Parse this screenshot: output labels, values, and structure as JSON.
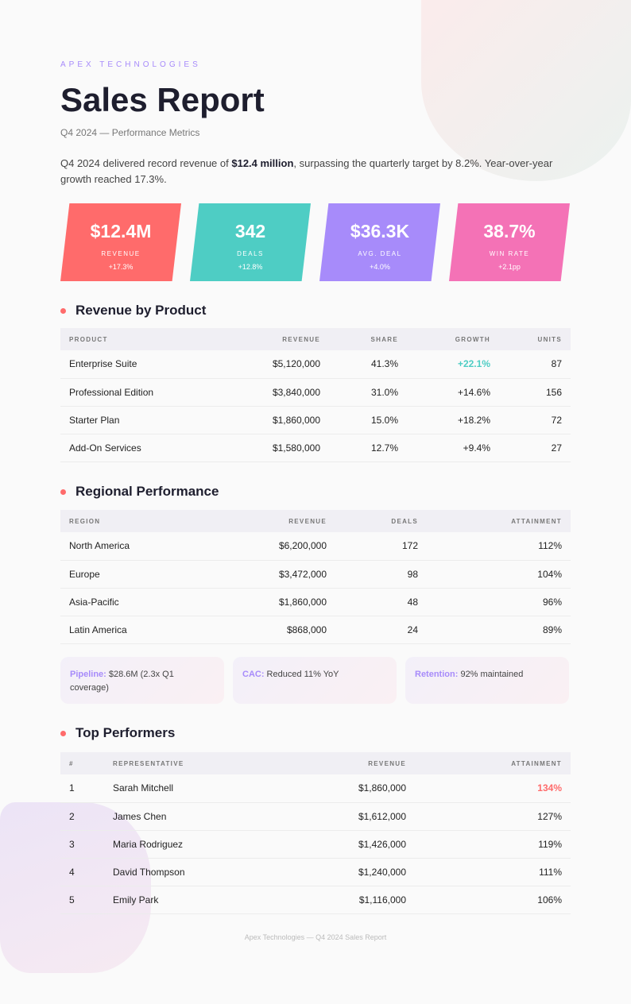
{
  "brand": "APEX TECHNOLOGIES",
  "title": "Sales Report",
  "subtitle": "Q4 2024 — Performance Metrics",
  "intro": {
    "pre": "Q4 2024 delivered record revenue of ",
    "bold": "$12.4 million",
    "post": ", surpassing the quarterly target by 8.2%. Year-over-year growth reached 17.3%."
  },
  "kpis": [
    {
      "value": "$12.4M",
      "label": "REVENUE",
      "delta": "+17.3%",
      "color": "#ff6b6b"
    },
    {
      "value": "342",
      "label": "DEALS",
      "delta": "+12.8%",
      "color": "#4ecdc4"
    },
    {
      "value": "$36.3K",
      "label": "AVG. DEAL",
      "delta": "+4.0%",
      "color": "#a78bfa"
    },
    {
      "value": "38.7%",
      "label": "WIN RATE",
      "delta": "+2.1pp",
      "color": "#f472b6"
    }
  ],
  "products": {
    "heading": "Revenue by Product",
    "headers": [
      "PRODUCT",
      "REVENUE",
      "SHARE",
      "GROWTH",
      "UNITS"
    ],
    "rows": [
      [
        "Enterprise Suite",
        "$5,120,000",
        "41.3%",
        "+22.1%",
        "87"
      ],
      [
        "Professional Edition",
        "$3,840,000",
        "31.0%",
        "+14.6%",
        "156"
      ],
      [
        "Starter Plan",
        "$1,860,000",
        "15.0%",
        "+18.2%",
        "72"
      ],
      [
        "Add-On Services",
        "$1,580,000",
        "12.7%",
        "+9.4%",
        "27"
      ]
    ]
  },
  "regions": {
    "heading": "Regional Performance",
    "headers": [
      "REGION",
      "REVENUE",
      "DEALS",
      "ATTAINMENT"
    ],
    "rows": [
      [
        "North America",
        "$6,200,000",
        "172",
        "112%"
      ],
      [
        "Europe",
        "$3,472,000",
        "98",
        "104%"
      ],
      [
        "Asia-Pacific",
        "$1,860,000",
        "48",
        "96%"
      ],
      [
        "Latin America",
        "$868,000",
        "24",
        "89%"
      ]
    ]
  },
  "notes": [
    {
      "label": "Pipeline:",
      "text": " $28.6M (2.3x Q1 coverage)"
    },
    {
      "label": "CAC:",
      "text": " Reduced 11% YoY"
    },
    {
      "label": "Retention:",
      "text": " 92% maintained"
    }
  ],
  "performers": {
    "heading": "Top Performers",
    "headers": [
      "#",
      "REPRESENTATIVE",
      "REVENUE",
      "ATTAINMENT"
    ],
    "rows": [
      [
        "1",
        "Sarah Mitchell",
        "$1,860,000",
        "134%"
      ],
      [
        "2",
        "James Chen",
        "$1,612,000",
        "127%"
      ],
      [
        "3",
        "Maria Rodriguez",
        "$1,426,000",
        "119%"
      ],
      [
        "4",
        "David Thompson",
        "$1,240,000",
        "111%"
      ],
      [
        "5",
        "Emily Park",
        "$1,116,000",
        "106%"
      ]
    ]
  },
  "footer": "Apex Technologies — Q4 2024 Sales Report"
}
